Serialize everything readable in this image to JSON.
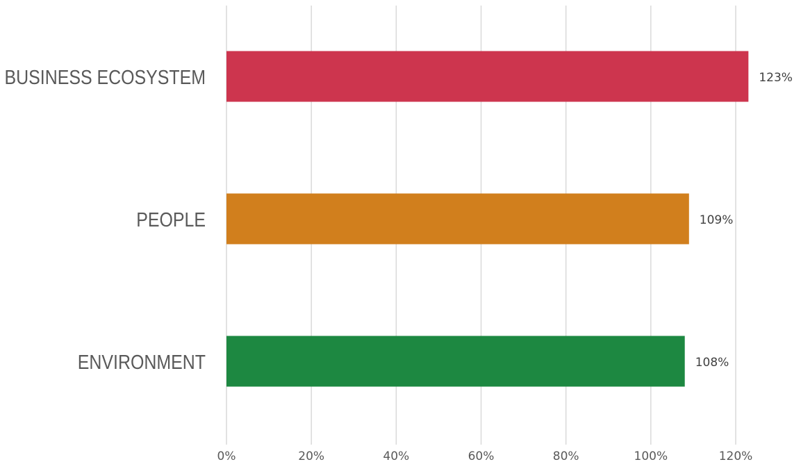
{
  "chart_data": {
    "type": "bar",
    "orientation": "horizontal",
    "categories": [
      "BUSINESS ECOSYSTEM",
      "PEOPLE",
      "ENVIRONMENT"
    ],
    "values": [
      123,
      109,
      108
    ],
    "data_labels": [
      "123%",
      "109%",
      "108%"
    ],
    "bar_colors": [
      "#cd354e",
      "#d17f1d",
      "#1d8841"
    ],
    "xlim": [
      0,
      120
    ],
    "x_ticks": [
      0,
      20,
      40,
      60,
      80,
      100,
      120
    ],
    "x_tick_labels": [
      "0%",
      "20%",
      "40%",
      "60%",
      "80%",
      "100%",
      "120%"
    ],
    "title": "",
    "xlabel": "",
    "ylabel": "",
    "grid": "vertical",
    "legend": "none"
  },
  "colors": {
    "gridline": "#d9d9d9",
    "category_text": "#595959",
    "tick_text": "#595959",
    "label_text": "#404040"
  }
}
